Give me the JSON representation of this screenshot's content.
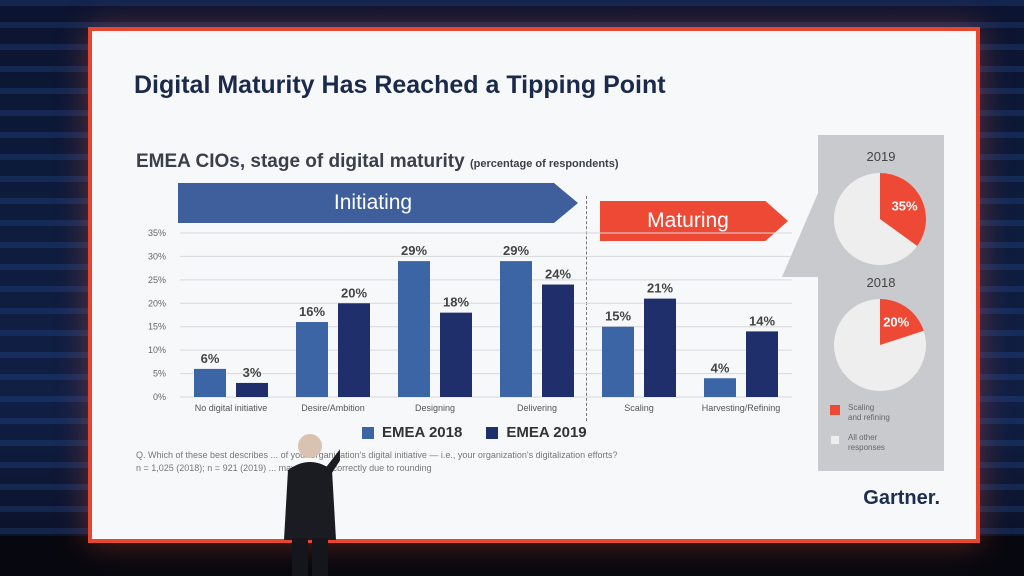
{
  "slide": {
    "title": "Digital Maturity Has Reached a Tipping Point",
    "subtitle": "EMEA CIOs, stage of digital maturity",
    "subtitle_note": "(percentage of respondents)",
    "arrow_initiating": "Initiating",
    "arrow_maturing": "Maturing",
    "note_line1": "Q. Which of these best describes ... of your organization's digital initiative — i.e., your organization's digitalization efforts?",
    "note_line2": "n = 1,025 (2018); n = 921 (2019) ... may not sum correctly due to rounding",
    "logo": "Gartner."
  },
  "colors": {
    "emea_2018": "#3b65a5",
    "emea_2019": "#1f2f6b",
    "accent_red": "#ee4935",
    "pie_other": "#eeeeee"
  },
  "chart_data": [
    {
      "type": "bar",
      "categories": [
        "No digital initiative",
        "Desire/Ambition",
        "Designing",
        "Delivering",
        "Scaling",
        "Harvesting/Refining"
      ],
      "series": [
        {
          "name": "EMEA 2018",
          "values": [
            6,
            16,
            29,
            29,
            15,
            4
          ]
        },
        {
          "name": "EMEA 2019",
          "values": [
            3,
            20,
            18,
            24,
            21,
            14
          ]
        }
      ],
      "data_labels": [
        [
          "6%",
          "16%",
          "29%",
          "29%",
          "15%",
          "4%"
        ],
        [
          "3%",
          "20%",
          "18%",
          "24%",
          "21%",
          "14%"
        ]
      ],
      "yticks": [
        "0%",
        "5%",
        "10%",
        "15%",
        "20%",
        "25%",
        "30%",
        "35%"
      ],
      "ylim": [
        0,
        35
      ],
      "grid": true,
      "legend": "bottom"
    },
    {
      "type": "pie",
      "title": "2019",
      "slices": [
        {
          "name": "Scaling and refining",
          "value": 35,
          "label": "35%"
        },
        {
          "name": "All other responses",
          "value": 65
        }
      ]
    },
    {
      "type": "pie",
      "title": "2018",
      "slices": [
        {
          "name": "Scaling and refining",
          "value": 20,
          "label": "20%"
        },
        {
          "name": "All other responses",
          "value": 80
        }
      ]
    }
  ],
  "pie_legend": {
    "scaling_line1": "Scaling",
    "scaling_line2": "and refining",
    "other_line1": "All other",
    "other_line2": "responses"
  }
}
